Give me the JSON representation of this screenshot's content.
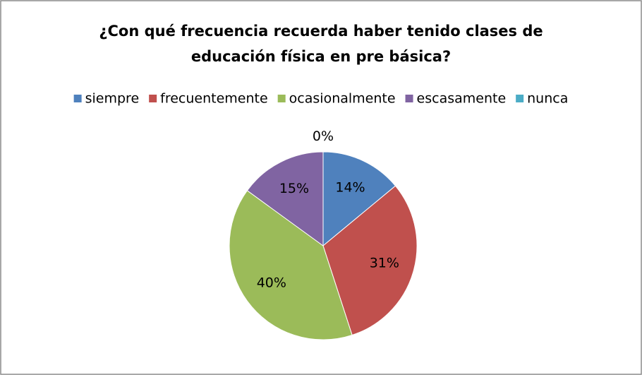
{
  "chart_data": {
    "type": "pie",
    "title": "¿Con qué frecuencia recuerda haber tenido clases de educación física en pre básica?",
    "categories": [
      "siempre",
      "frecuentemente",
      "ocasionalmente",
      "escasamente",
      "nunca"
    ],
    "values": [
      14,
      31,
      40,
      15,
      0
    ],
    "value_labels": [
      "14%",
      "31%",
      "40%",
      "15%",
      "0%"
    ],
    "colors": [
      "#4f81bd",
      "#c0504d",
      "#9bbb59",
      "#8064a2",
      "#4bacc6"
    ],
    "legend": "top"
  }
}
